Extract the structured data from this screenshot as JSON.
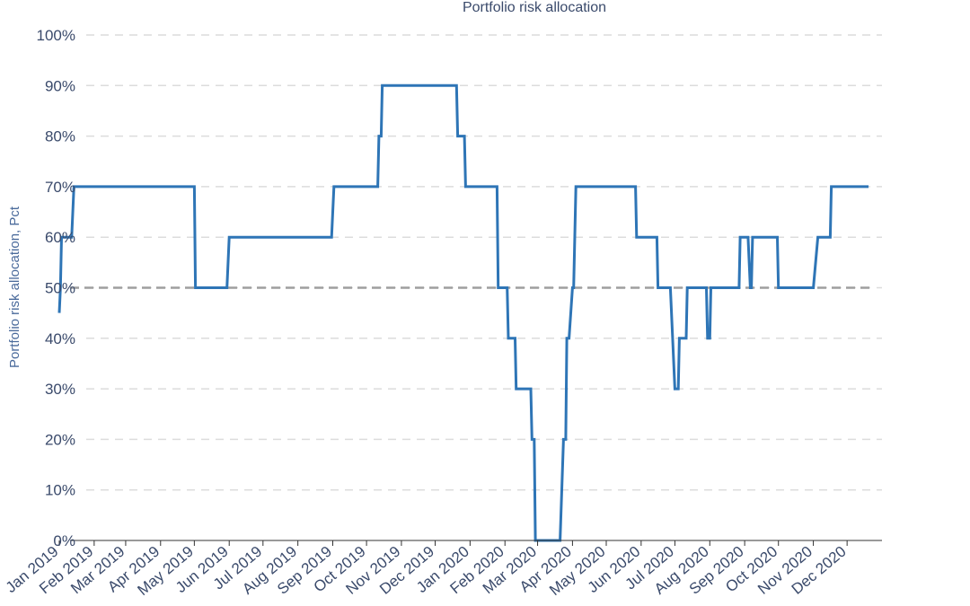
{
  "chart_data": {
    "type": "line",
    "title": "Portfolio risk allocation",
    "xlabel": "",
    "ylabel": "Portfolio risk allocation, Pct",
    "ylim": [
      0,
      100
    ],
    "xlim": [
      "2019-01-01",
      "2021-01-01"
    ],
    "y_ticks": [
      {
        "value": 0,
        "label": "0%"
      },
      {
        "value": 10,
        "label": "10%"
      },
      {
        "value": 20,
        "label": "20%"
      },
      {
        "value": 30,
        "label": "30%"
      },
      {
        "value": 40,
        "label": "40%"
      },
      {
        "value": 50,
        "label": "50%"
      },
      {
        "value": 60,
        "label": "60%"
      },
      {
        "value": 70,
        "label": "70%"
      },
      {
        "value": 80,
        "label": "80%"
      },
      {
        "value": 90,
        "label": "90%"
      },
      {
        "value": 100,
        "label": "100%"
      }
    ],
    "x_ticks": [
      {
        "date": "2019-01-01",
        "label": "Jan 2019"
      },
      {
        "date": "2019-02-01",
        "label": "Feb 2019"
      },
      {
        "date": "2019-03-01",
        "label": "Mar 2019"
      },
      {
        "date": "2019-04-01",
        "label": "Apr 2019"
      },
      {
        "date": "2019-05-01",
        "label": "May 2019"
      },
      {
        "date": "2019-06-01",
        "label": "Jun 2019"
      },
      {
        "date": "2019-07-01",
        "label": "Jul 2019"
      },
      {
        "date": "2019-08-01",
        "label": "Aug 2019"
      },
      {
        "date": "2019-09-01",
        "label": "Sep 2019"
      },
      {
        "date": "2019-10-01",
        "label": "Oct 2019"
      },
      {
        "date": "2019-11-01",
        "label": "Nov 2019"
      },
      {
        "date": "2019-12-01",
        "label": "Dec 2019"
      },
      {
        "date": "2020-01-01",
        "label": "Jan 2020"
      },
      {
        "date": "2020-02-01",
        "label": "Feb 2020"
      },
      {
        "date": "2020-03-01",
        "label": "Mar 2020"
      },
      {
        "date": "2020-04-01",
        "label": "Apr 2020"
      },
      {
        "date": "2020-05-01",
        "label": "May 2020"
      },
      {
        "date": "2020-06-01",
        "label": "Jun 2020"
      },
      {
        "date": "2020-07-01",
        "label": "Jul 2020"
      },
      {
        "date": "2020-08-01",
        "label": "Aug 2020"
      },
      {
        "date": "2020-09-01",
        "label": "Sep 2020"
      },
      {
        "date": "2020-10-01",
        "label": "Oct 2020"
      },
      {
        "date": "2020-11-01",
        "label": "Nov 2020"
      },
      {
        "date": "2020-12-01",
        "label": "Dec 2020"
      }
    ],
    "grid": true,
    "reference_line": {
      "y": 50,
      "style": "dashed",
      "color": "#9e9e9e"
    },
    "series": [
      {
        "color": "#2e75b6",
        "points": [
          {
            "x": "2019-01-01",
            "y": 45
          },
          {
            "x": "2019-01-02",
            "y": 50
          },
          {
            "x": "2019-01-03",
            "y": 60
          },
          {
            "x": "2019-01-12",
            "y": 60
          },
          {
            "x": "2019-01-14",
            "y": 70
          },
          {
            "x": "2019-05-01",
            "y": 70
          },
          {
            "x": "2019-05-02",
            "y": 50
          },
          {
            "x": "2019-05-30",
            "y": 50
          },
          {
            "x": "2019-06-01",
            "y": 60
          },
          {
            "x": "2019-08-31",
            "y": 60
          },
          {
            "x": "2019-09-02",
            "y": 70
          },
          {
            "x": "2019-10-11",
            "y": 70
          },
          {
            "x": "2019-10-12",
            "y": 80
          },
          {
            "x": "2019-10-14",
            "y": 80
          },
          {
            "x": "2019-10-15",
            "y": 90
          },
          {
            "x": "2019-12-20",
            "y": 90
          },
          {
            "x": "2019-12-21",
            "y": 80
          },
          {
            "x": "2019-12-27",
            "y": 80
          },
          {
            "x": "2019-12-28",
            "y": 70
          },
          {
            "x": "2020-01-25",
            "y": 70
          },
          {
            "x": "2020-01-26",
            "y": 50
          },
          {
            "x": "2020-02-03",
            "y": 50
          },
          {
            "x": "2020-02-04",
            "y": 40
          },
          {
            "x": "2020-02-10",
            "y": 40
          },
          {
            "x": "2020-02-11",
            "y": 30
          },
          {
            "x": "2020-02-24",
            "y": 30
          },
          {
            "x": "2020-02-25",
            "y": 20
          },
          {
            "x": "2020-02-27",
            "y": 20
          },
          {
            "x": "2020-02-28",
            "y": 0
          },
          {
            "x": "2020-03-21",
            "y": 0
          },
          {
            "x": "2020-03-24",
            "y": 20
          },
          {
            "x": "2020-03-26",
            "y": 20
          },
          {
            "x": "2020-03-27",
            "y": 40
          },
          {
            "x": "2020-03-29",
            "y": 40
          },
          {
            "x": "2020-04-01",
            "y": 50
          },
          {
            "x": "2020-04-02",
            "y": 50
          },
          {
            "x": "2020-04-04",
            "y": 70
          },
          {
            "x": "2020-05-27",
            "y": 70
          },
          {
            "x": "2020-05-28",
            "y": 60
          },
          {
            "x": "2020-06-15",
            "y": 60
          },
          {
            "x": "2020-06-16",
            "y": 50
          },
          {
            "x": "2020-06-27",
            "y": 50
          },
          {
            "x": "2020-07-01",
            "y": 30
          },
          {
            "x": "2020-07-04",
            "y": 30
          },
          {
            "x": "2020-07-05",
            "y": 40
          },
          {
            "x": "2020-07-11",
            "y": 40
          },
          {
            "x": "2020-07-12",
            "y": 50
          },
          {
            "x": "2020-07-29",
            "y": 50
          },
          {
            "x": "2020-07-30",
            "y": 40
          },
          {
            "x": "2020-08-01",
            "y": 40
          },
          {
            "x": "2020-08-02",
            "y": 50
          },
          {
            "x": "2020-08-27",
            "y": 50
          },
          {
            "x": "2020-08-28",
            "y": 60
          },
          {
            "x": "2020-09-04",
            "y": 60
          },
          {
            "x": "2020-09-06",
            "y": 50
          },
          {
            "x": "2020-09-07",
            "y": 50
          },
          {
            "x": "2020-09-08",
            "y": 60
          },
          {
            "x": "2020-09-30",
            "y": 60
          },
          {
            "x": "2020-10-01",
            "y": 50
          },
          {
            "x": "2020-11-01",
            "y": 50
          },
          {
            "x": "2020-11-05",
            "y": 60
          },
          {
            "x": "2020-11-16",
            "y": 60
          },
          {
            "x": "2020-11-17",
            "y": 70
          },
          {
            "x": "2020-12-20",
            "y": 70
          }
        ]
      }
    ]
  }
}
